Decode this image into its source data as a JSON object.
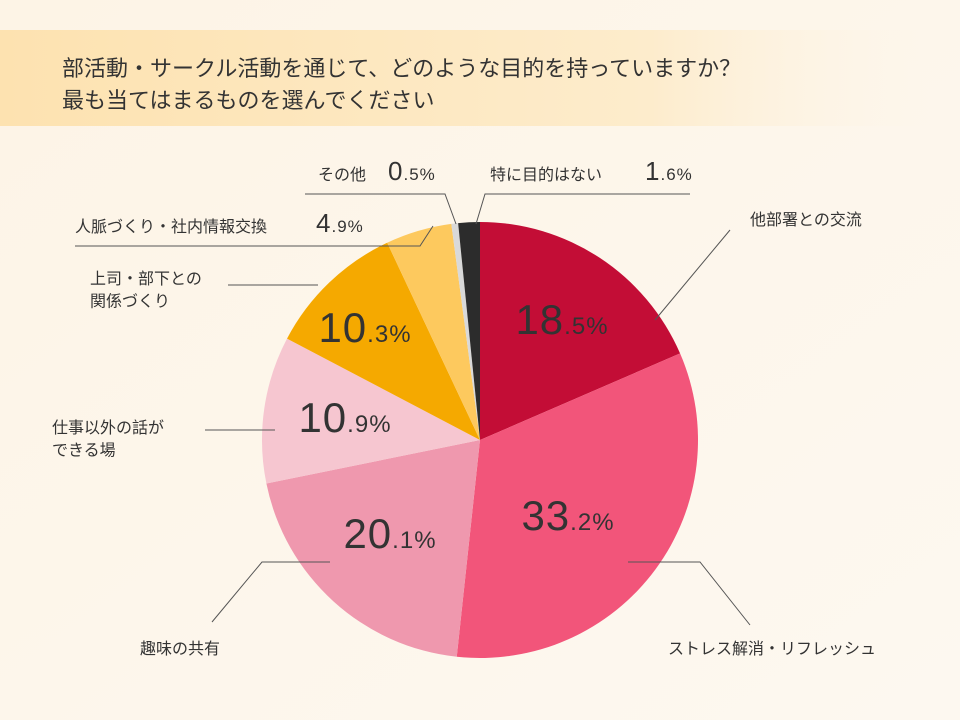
{
  "chart_data": {
    "type": "pie",
    "title": "部活動・サークル活動を通じて、どのような目的を持っていますか？\n最も当てはまるものを選んでください",
    "categories": [
      "他部署との交流",
      "ストレス解消・リフレッシュ",
      "趣味の共有",
      "仕事以外の話が\nできる場",
      "上司・部下との\n関係づくり",
      "人脈づくり・社内情報交換",
      "その他",
      "特に目的はない"
    ],
    "values": [
      18.5,
      33.2,
      20.1,
      10.9,
      10.3,
      4.9,
      0.5,
      1.6
    ],
    "value_labels": [
      "18.5%",
      "33.2%",
      "20.1%",
      "10.9%",
      "10.3%",
      "4.9%",
      "0.5%",
      "1.6%"
    ],
    "colors": [
      "#c30d36",
      "#f2557a",
      "#ef98ae",
      "#f6c6d0",
      "#f5a900",
      "#fdc95e",
      "#d9d9d9",
      "#2c2c2c"
    ]
  }
}
